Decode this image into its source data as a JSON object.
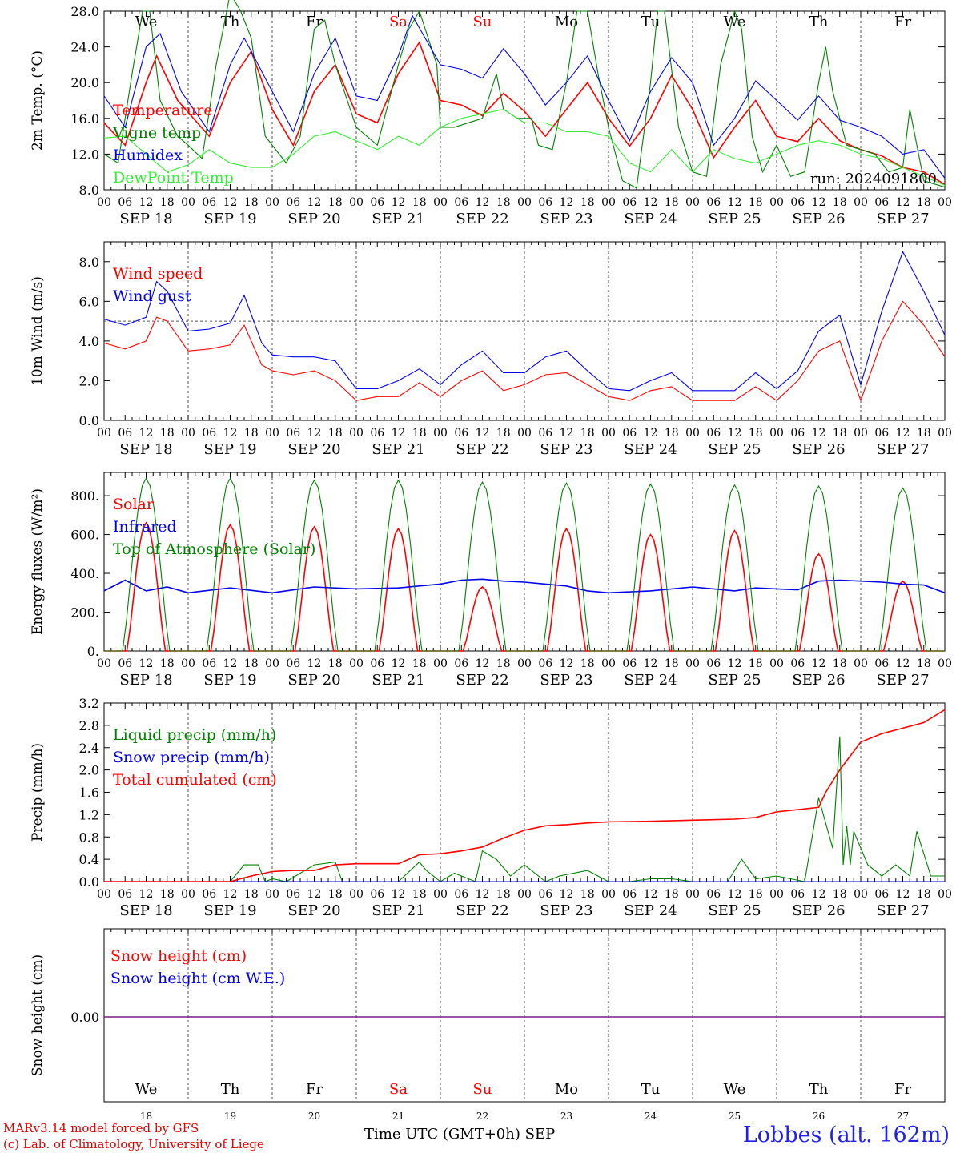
{
  "chart_data": [
    {
      "type": "line",
      "ylabel": "2m Temp. (°C)",
      "ylim": [
        8,
        28
      ],
      "yticks": [
        "8.0",
        "12.0",
        "16.0",
        "20.0",
        "24.0",
        "28.0"
      ],
      "yticks_values": [
        8,
        12,
        16,
        20,
        24,
        28
      ],
      "run_label": "run: 2024091800",
      "legend": [
        "Temperature",
        "Vigne temp",
        "Humidex",
        "DewPoint Temp"
      ],
      "series": [
        {
          "name": "Temperature",
          "color": "#ff0000",
          "x": [
            0,
            6,
            12,
            15,
            21,
            30,
            36,
            42,
            48,
            54,
            60,
            66,
            72,
            78,
            84,
            90,
            96,
            102,
            108,
            114,
            120,
            126,
            132,
            138,
            144,
            150,
            156,
            162,
            168,
            174,
            180,
            186,
            192,
            198,
            204,
            210,
            216,
            222,
            228,
            234,
            240
          ],
          "values": [
            15.5,
            13,
            20,
            23,
            18,
            14,
            20,
            23.5,
            17,
            13,
            19,
            22,
            16.5,
            15.5,
            21,
            24.5,
            18,
            17.5,
            16.3,
            18.8,
            16.8,
            14,
            17,
            20,
            16,
            12.9,
            16,
            20.8,
            17,
            11.6,
            15,
            18,
            14,
            13.4,
            16,
            13.5,
            12.5,
            11.8,
            10.5,
            10,
            8.6
          ]
        },
        {
          "name": "Vigne temp",
          "color": "#008000",
          "x": [
            0,
            4,
            8,
            11,
            13,
            16,
            21,
            24,
            28,
            32,
            36,
            39,
            42,
            46,
            52,
            56,
            60,
            63,
            66,
            72,
            78,
            84,
            87,
            90,
            95,
            96,
            100,
            108,
            112,
            114,
            118,
            122,
            124,
            128,
            132,
            135,
            138,
            141,
            144,
            148,
            152,
            156,
            158,
            160,
            164,
            168,
            172,
            176,
            180,
            182,
            185,
            188,
            192,
            196,
            200,
            204,
            206,
            208,
            212,
            216,
            220,
            224,
            228,
            230,
            234,
            240
          ],
          "values": [
            12,
            11,
            21,
            28,
            28,
            18,
            14,
            13,
            11.5,
            22,
            30,
            28,
            25,
            14,
            11,
            14,
            26,
            27,
            22,
            15,
            13,
            22,
            26,
            28,
            22,
            15,
            15,
            16,
            21,
            17,
            16,
            16,
            13,
            12.5,
            20,
            28,
            28,
            21,
            15,
            9,
            8.2,
            20,
            28,
            28,
            15,
            10,
            9.5,
            22,
            28,
            26,
            14,
            10,
            13,
            9.5,
            10,
            20,
            24,
            19,
            13,
            12.5,
            12,
            10,
            10.5,
            17,
            9,
            8.3
          ]
        },
        {
          "name": "Humidex",
          "color": "#0000ee",
          "x": [
            0,
            6,
            12,
            16,
            22,
            30,
            36,
            40,
            48,
            54,
            60,
            66,
            72,
            78,
            84,
            88,
            96,
            102,
            108,
            114,
            120,
            126,
            132,
            138,
            144,
            150,
            156,
            162,
            168,
            174,
            180,
            186,
            192,
            198,
            204,
            210,
            216,
            222,
            228,
            234,
            240
          ],
          "values": [
            18.5,
            15,
            24,
            25.5,
            19,
            14.5,
            22,
            25,
            19,
            14.5,
            21,
            25,
            18.5,
            18,
            23,
            27.5,
            22,
            21.5,
            20.5,
            23.8,
            21,
            17.5,
            20,
            23,
            18,
            13.5,
            19,
            22.8,
            20,
            13,
            16,
            20.2,
            18,
            15.8,
            18.5,
            15.8,
            15,
            14,
            12,
            12.5,
            9.3
          ]
        },
        {
          "name": "DewPoint Temp",
          "color": "#33ee33",
          "x": [
            0,
            6,
            12,
            18,
            24,
            30,
            36,
            42,
            48,
            54,
            60,
            66,
            72,
            78,
            84,
            90,
            96,
            102,
            108,
            114,
            120,
            126,
            132,
            138,
            144,
            150,
            156,
            162,
            168,
            174,
            180,
            186,
            192,
            198,
            204,
            210,
            216,
            222,
            228,
            234,
            240
          ],
          "values": [
            13.8,
            14,
            12,
            10,
            10.8,
            12.5,
            11,
            10.5,
            10.5,
            12,
            14,
            14.5,
            13.5,
            12.5,
            14,
            13,
            15,
            16,
            16.5,
            17,
            15.5,
            15.5,
            14.5,
            14.5,
            14,
            11,
            10,
            12.5,
            10,
            12.5,
            11.5,
            11,
            12,
            13,
            13.5,
            13,
            12,
            11.5,
            10.5,
            9.5,
            8.5
          ]
        }
      ]
    },
    {
      "type": "line",
      "ylabel": "10m Wind (m/s)",
      "ylim": [
        0,
        9
      ],
      "yticks": [
        "0.0",
        "2.0",
        "4.0",
        "6.0",
        "8.0"
      ],
      "yticks_values": [
        0,
        2,
        4,
        6,
        8
      ],
      "reference_line": 5,
      "legend": [
        "Wind speed",
        "Wind gust"
      ],
      "series": [
        {
          "name": "Wind speed",
          "color": "#ff0000",
          "x": [
            0,
            6,
            12,
            15,
            18,
            24,
            30,
            36,
            40,
            45,
            48,
            54,
            60,
            66,
            72,
            78,
            84,
            90,
            96,
            102,
            108,
            114,
            120,
            126,
            132,
            138,
            144,
            150,
            156,
            162,
            168,
            174,
            180,
            186,
            192,
            198,
            204,
            210,
            216,
            222,
            228,
            234,
            240
          ],
          "values": [
            3.9,
            3.6,
            4,
            5.2,
            5,
            3.5,
            3.6,
            3.8,
            4.8,
            2.8,
            2.5,
            2.3,
            2.5,
            2,
            1,
            1.2,
            1.2,
            1.9,
            1.2,
            2,
            2.5,
            1.5,
            1.8,
            2.3,
            2.4,
            1.8,
            1.2,
            1,
            1.5,
            1.7,
            1,
            1,
            1,
            1.7,
            1,
            2,
            3.5,
            4,
            1,
            4,
            6,
            4.8,
            3.2
          ]
        },
        {
          "name": "Wind gust",
          "color": "#0000ee",
          "x": [
            0,
            6,
            12,
            15,
            18,
            24,
            30,
            36,
            40,
            45,
            48,
            54,
            60,
            66,
            72,
            78,
            84,
            90,
            96,
            102,
            108,
            114,
            120,
            126,
            132,
            138,
            144,
            150,
            156,
            162,
            168,
            174,
            180,
            186,
            192,
            198,
            204,
            210,
            216,
            222,
            228,
            234,
            240
          ],
          "values": [
            5.1,
            4.8,
            5.2,
            7,
            6.5,
            4.5,
            4.6,
            4.9,
            6.3,
            3.9,
            3.3,
            3.2,
            3.2,
            3,
            1.6,
            1.6,
            2,
            2.6,
            1.8,
            2.8,
            3.5,
            2.4,
            2.4,
            3.2,
            3.5,
            2.5,
            1.6,
            1.5,
            2,
            2.4,
            1.5,
            1.5,
            1.5,
            2.4,
            1.6,
            2.5,
            4.5,
            5.3,
            1.8,
            5.5,
            8.5,
            6.5,
            4.3
          ]
        }
      ]
    },
    {
      "type": "line",
      "ylabel": "Energy fluxes (W/m²)",
      "ylim": [
        0,
        920
      ],
      "yticks": [
        "0.",
        "200.",
        "400.",
        "600.",
        "800."
      ],
      "yticks_values": [
        0,
        200,
        400,
        600,
        800
      ],
      "legend": [
        "Solar",
        "Infrared",
        "Top of Atmosphere (Solar)"
      ],
      "series": [
        {
          "name": "Solar",
          "color": "#ff0000",
          "daily_peaks": [
            660,
            650,
            640,
            630,
            330,
            630,
            600,
            620,
            500,
            360
          ]
        },
        {
          "name": "Infrared",
          "color": "#0000ee",
          "x": [
            0,
            6,
            12,
            18,
            24,
            36,
            48,
            60,
            72,
            84,
            96,
            102,
            108,
            114,
            120,
            126,
            132,
            138,
            144,
            156,
            168,
            174,
            180,
            186,
            192,
            198,
            204,
            210,
            216,
            222,
            228,
            234,
            240
          ],
          "values": [
            310,
            365,
            310,
            330,
            300,
            325,
            300,
            330,
            320,
            325,
            345,
            365,
            370,
            360,
            355,
            345,
            335,
            310,
            300,
            310,
            330,
            320,
            310,
            325,
            320,
            315,
            360,
            365,
            360,
            355,
            345,
            340,
            300
          ]
        },
        {
          "name": "Top of Atmosphere (Solar)",
          "color": "#008000",
          "daily_peaks": [
            890,
            890,
            880,
            880,
            870,
            865,
            860,
            855,
            850,
            840
          ]
        }
      ]
    },
    {
      "type": "line",
      "ylabel": "Precip (mm/h)",
      "ylim": [
        0,
        3.2
      ],
      "yticks": [
        "0.0",
        "0.4",
        "0.8",
        "1.2",
        "1.6",
        "2.0",
        "2.4",
        "2.8",
        "3.2"
      ],
      "yticks_values": [
        0,
        0.4,
        0.8,
        1.2,
        1.6,
        2.0,
        2.4,
        2.8,
        3.2
      ],
      "legend": [
        "Liquid precip (mm/h)",
        "Snow precip (mm/h)",
        "Total cumulated (cm)"
      ],
      "series": [
        {
          "name": "Liquid precip (mm/h)",
          "color": "#008000",
          "x": [
            0,
            36,
            40,
            44,
            46,
            48,
            52,
            60,
            66,
            68,
            70,
            72,
            84,
            90,
            92,
            96,
            100,
            106,
            108,
            112,
            116,
            120,
            124,
            126,
            130,
            138,
            144,
            150,
            156,
            162,
            168,
            178,
            182,
            186,
            192,
            200,
            204,
            208,
            210,
            211,
            212,
            213,
            214,
            218,
            222,
            226,
            230,
            232,
            236,
            240
          ],
          "values": [
            0,
            0,
            0.3,
            0.3,
            0,
            0.05,
            0,
            0.3,
            0.35,
            0,
            0,
            0,
            0,
            0.35,
            0.2,
            0,
            0.15,
            0,
            0.55,
            0.4,
            0.1,
            0.3,
            0.1,
            0,
            0.1,
            0.2,
            0,
            0,
            0.05,
            0.05,
            0,
            0,
            0.4,
            0.05,
            0.1,
            0,
            1.5,
            0.6,
            2.6,
            0.3,
            1.0,
            0.3,
            0.9,
            0.3,
            0.1,
            0.3,
            0.1,
            0.9,
            0.1,
            0.1
          ]
        },
        {
          "name": "Snow precip (mm/h)",
          "color": "#0000ee",
          "x": [
            0,
            240
          ],
          "values": [
            0,
            0
          ]
        },
        {
          "name": "Total cumulated (cm)",
          "color": "#ff0000",
          "x": [
            0,
            36,
            42,
            48,
            54,
            60,
            66,
            72,
            84,
            90,
            96,
            102,
            108,
            114,
            120,
            126,
            132,
            138,
            144,
            156,
            168,
            180,
            186,
            192,
            204,
            206,
            210,
            216,
            222,
            228,
            234,
            240
          ],
          "values": [
            0,
            0,
            0.1,
            0.18,
            0.2,
            0.2,
            0.3,
            0.32,
            0.32,
            0.48,
            0.5,
            0.55,
            0.62,
            0.78,
            0.92,
            1.0,
            1.02,
            1.05,
            1.07,
            1.08,
            1.1,
            1.12,
            1.15,
            1.25,
            1.33,
            1.6,
            2.0,
            2.5,
            2.65,
            2.75,
            2.85,
            3.08
          ]
        }
      ]
    },
    {
      "type": "line",
      "ylabel": "Snow height (cm)",
      "yticks": [
        "0.00"
      ],
      "yticks_values": [
        0
      ],
      "legend": [
        "Snow height (cm)",
        "Snow height (cm W.E.)"
      ],
      "series": [
        {
          "name": "Snow height (cm)",
          "color": "#ff0000",
          "x": [
            0,
            240
          ],
          "values": [
            0,
            0
          ]
        },
        {
          "name": "Snow height (cm W.E.)",
          "color": "#0000ee",
          "x": [
            0,
            240
          ],
          "values": [
            0,
            0
          ]
        }
      ]
    }
  ],
  "x_axis": {
    "hours": [
      "00",
      "06",
      "12",
      "18"
    ],
    "end_hour": "00",
    "dates": [
      "SEP 18",
      "SEP 19",
      "SEP 20",
      "SEP 21",
      "SEP 22",
      "SEP 23",
      "SEP 24",
      "SEP 25",
      "SEP 26",
      "SEP 27"
    ],
    "weekdays": [
      "We",
      "Th",
      "Fr",
      "Sa",
      "Su",
      "Mo",
      "Tu",
      "We",
      "Th",
      "Fr"
    ],
    "weekend_color": "#ff0000",
    "day_numbers": [
      "18",
      "19",
      "20",
      "21",
      "22",
      "23",
      "24",
      "25",
      "26",
      "27"
    ],
    "title": "Time UTC (GMT+0h)",
    "month": "SEP"
  },
  "footer": {
    "model": "MARv3.14 model forced by GFS",
    "credit": "(c) Lab. of Climatology, University of Liege",
    "station": "Lobbes (alt. 162m)"
  }
}
